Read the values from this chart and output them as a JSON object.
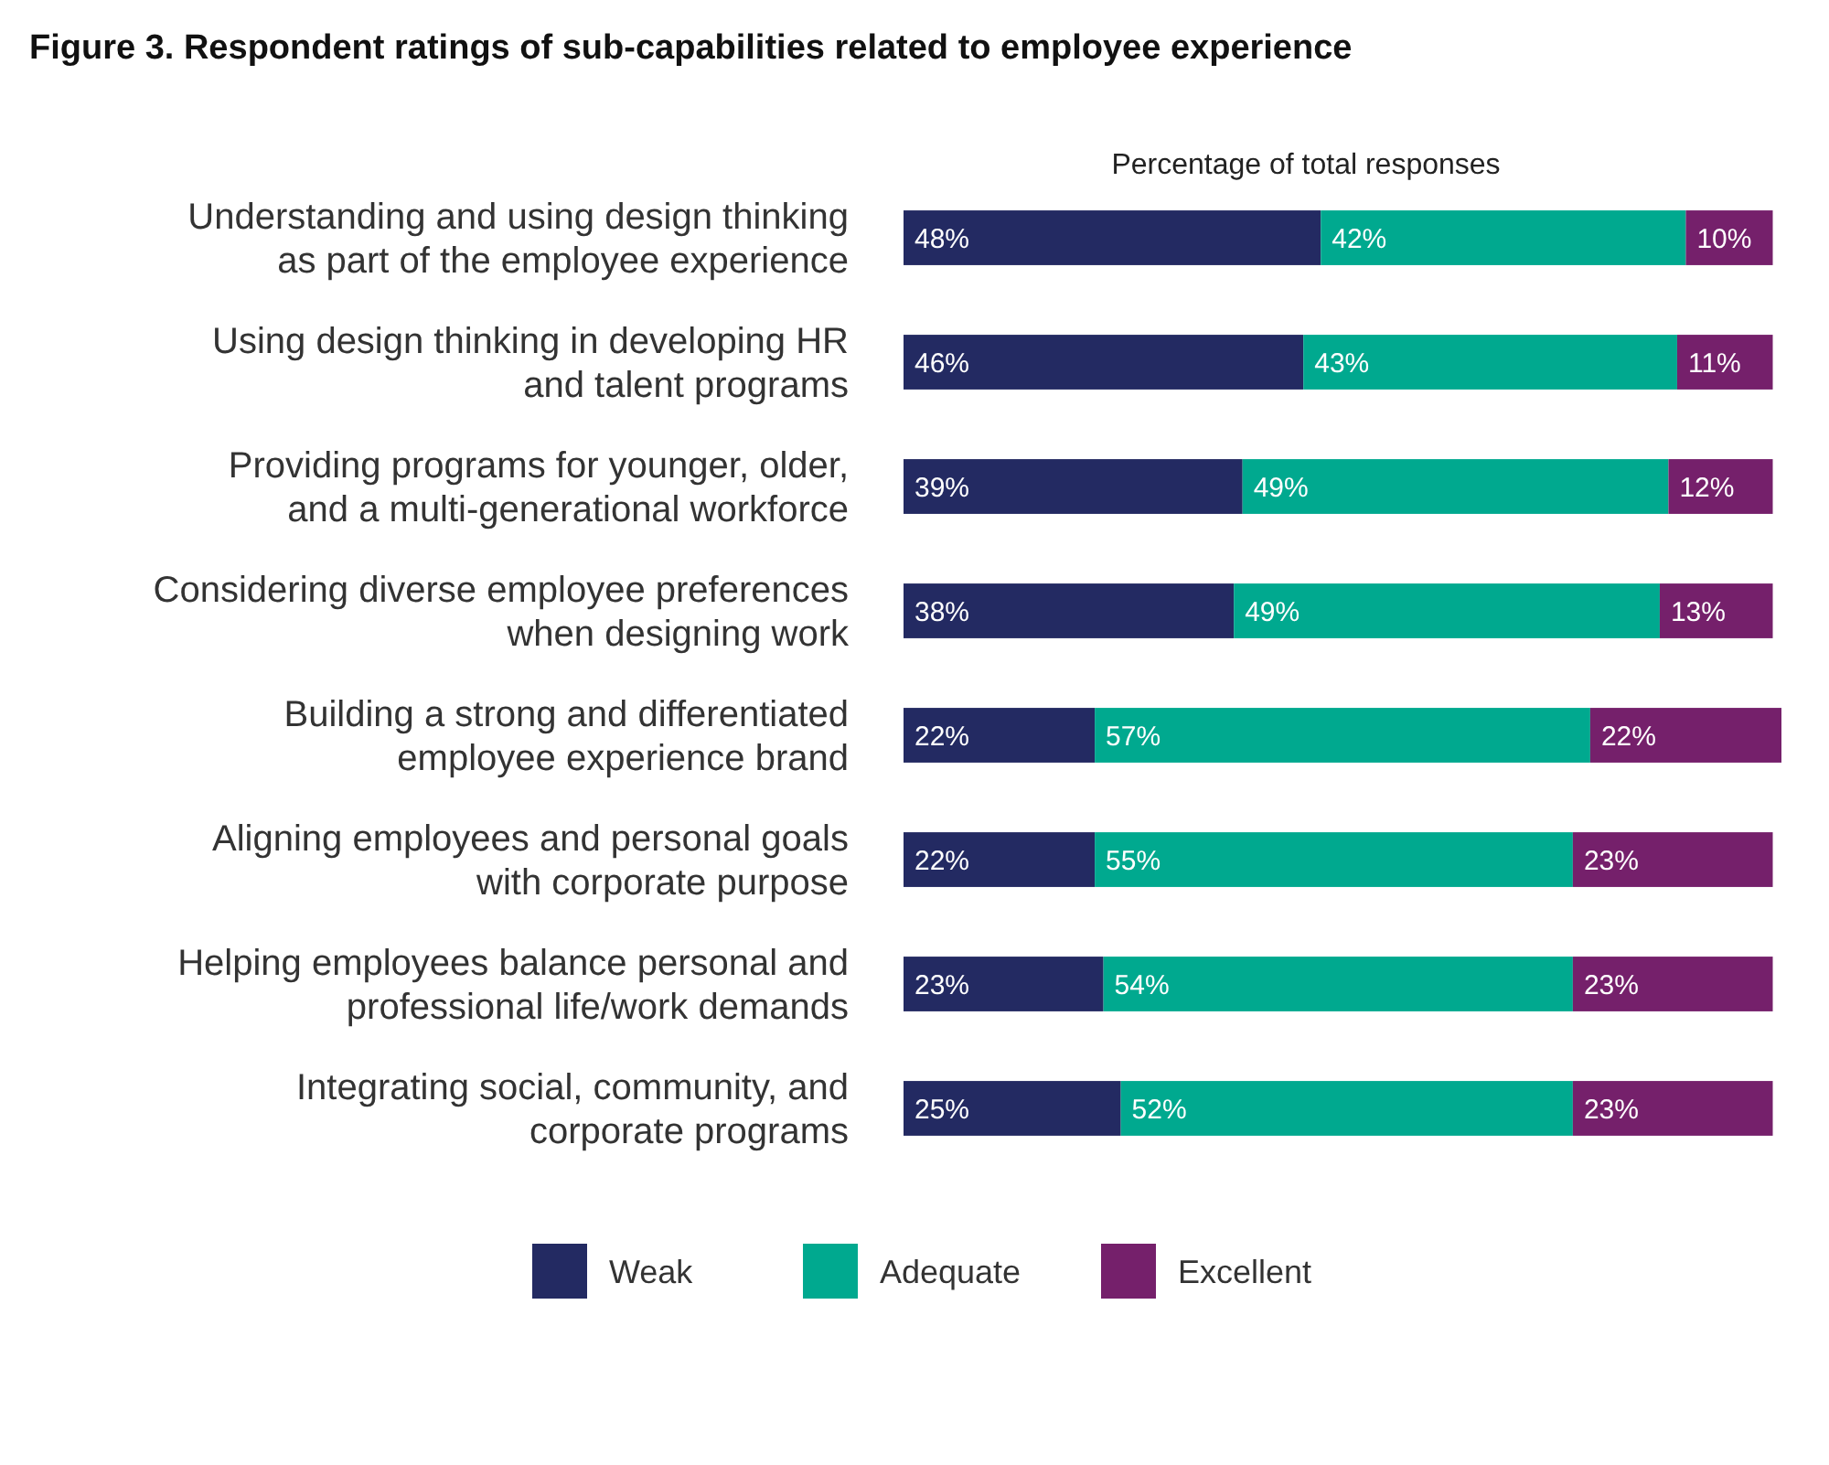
{
  "chart_data": {
    "type": "bar",
    "orientation": "horizontal",
    "stacked": true,
    "legend": "bottom",
    "title": "Figure 3. Respondent ratings of sub-capabilities related to employee experience",
    "xlabel": "Percentage of total responses",
    "categories": [
      "Understanding and using design thinking as part of the employee experience",
      "Using design thinking in developing HR and talent programs",
      "Providing programs for younger, older, and a multi-generational workforce",
      "Considering diverse employee preferences when designing work",
      "Building a strong and differentiated employee experience brand",
      "Aligning employees and personal goals with corporate purpose",
      "Helping employees balance personal and professional life/work demands",
      "Integrating social, community, and corporate programs"
    ],
    "series": [
      {
        "name": "Weak",
        "color": "#232a62",
        "values": [
          48,
          46,
          39,
          38,
          22,
          22,
          23,
          25
        ],
        "value_labels": [
          "48%",
          "46%",
          "39%",
          "38%",
          "22%",
          "22%",
          "23%",
          "25%"
        ]
      },
      {
        "name": "Adequate",
        "color": "#00a98f",
        "values": [
          42,
          43,
          49,
          49,
          57,
          55,
          54,
          52
        ],
        "value_labels": [
          "42%",
          "43%",
          "49%",
          "49%",
          "57%",
          "55%",
          "54%",
          "52%"
        ]
      },
      {
        "name": "Excellent",
        "color": "#75206b",
        "values": [
          10,
          11,
          12,
          13,
          22,
          23,
          23,
          23
        ],
        "value_labels": [
          "10%",
          "11%",
          "12%",
          "13%",
          "22%",
          "23%",
          "23%",
          "23%"
        ]
      }
    ]
  }
}
